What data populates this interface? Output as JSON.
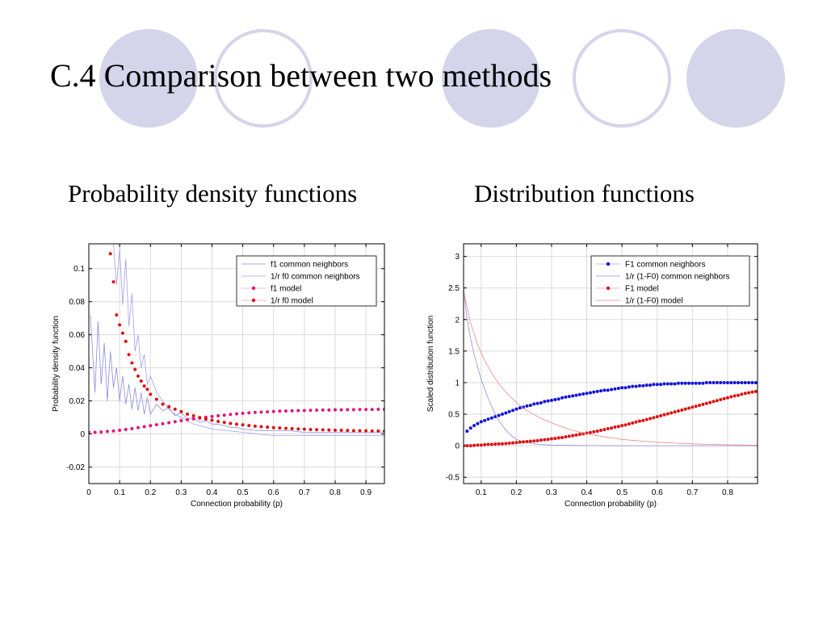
{
  "slide": {
    "title": "C.4 Comparison between two methods",
    "subtitle_left": "Probability density functions",
    "subtitle_right": "Distribution functions",
    "decor_fill": "#d4d4ea",
    "decor_stroke": "#d4d4ea"
  },
  "chart_data": [
    {
      "type": "line",
      "xlabel": "Connection probability (p)",
      "ylabel": "Probability density function",
      "xlim": [
        0,
        0.96
      ],
      "ylim": [
        -0.03,
        0.115
      ],
      "xticks": [
        "0",
        "0.1",
        "0.2",
        "0.3",
        "0.4",
        "0.5",
        "0.6",
        "0.7",
        "0.8",
        "0.9"
      ],
      "yticks": [
        "-0.02",
        "0",
        "0.02",
        "0.04",
        "0.06",
        "0.08",
        "0.1"
      ],
      "grid": true,
      "legend_position": "top-right",
      "series": [
        {
          "name": "f1  common neighbors",
          "color": "#8c8ce0",
          "style": "line",
          "x": [
            0.005,
            0.02,
            0.03,
            0.04,
            0.05,
            0.06,
            0.07,
            0.08,
            0.09,
            0.1,
            0.11,
            0.12,
            0.13,
            0.14,
            0.15,
            0.16,
            0.17,
            0.18,
            0.19,
            0.2,
            0.22,
            0.24,
            0.26,
            0.28,
            0.3,
            0.32,
            0.34,
            0.36,
            0.38,
            0.4,
            0.42,
            0.44,
            0.46,
            0.48,
            0.5,
            0.55,
            0.6,
            0.65,
            0.7,
            0.75,
            0.8,
            0.85,
            0.9,
            0.96
          ],
          "y": [
            0.072,
            0.025,
            0.068,
            0.03,
            0.055,
            0.02,
            0.05,
            0.028,
            0.04,
            0.02,
            0.035,
            0.018,
            0.03,
            0.015,
            0.028,
            0.014,
            0.025,
            0.012,
            0.022,
            0.012,
            0.018,
            0.014,
            0.016,
            0.011,
            0.013,
            0.009,
            0.01,
            0.007,
            0.008,
            0.006,
            0.006,
            0.005,
            0.004,
            0.004,
            0.003,
            0.002,
            0.002,
            0.002,
            0.001,
            0.001,
            0.001,
            0.001,
            0.001,
            0.001
          ]
        },
        {
          "name": "1/r f0  common neighbors",
          "color": "#a0a0e8",
          "style": "line",
          "x": [
            0.08,
            0.09,
            0.1,
            0.11,
            0.12,
            0.13,
            0.14,
            0.15,
            0.16,
            0.17,
            0.18,
            0.19,
            0.2,
            0.22,
            0.24,
            0.26,
            0.28,
            0.3,
            0.32,
            0.34,
            0.36,
            0.38,
            0.4,
            0.45,
            0.5,
            0.55,
            0.6,
            0.7,
            0.8,
            0.9,
            0.96
          ],
          "y": [
            0.115,
            0.09,
            0.112,
            0.078,
            0.106,
            0.065,
            0.085,
            0.05,
            0.06,
            0.04,
            0.048,
            0.03,
            0.035,
            0.025,
            0.02,
            0.015,
            0.012,
            0.01,
            0.008,
            0.006,
            0.005,
            0.004,
            0.003,
            0.002,
            0.001,
            0.0,
            -0.001,
            -0.001,
            -0.001,
            -0.001,
            -0.001
          ]
        },
        {
          "name": "f1  model",
          "color": "#e0157a",
          "style": "dots",
          "x": [
            0.0,
            0.02,
            0.04,
            0.06,
            0.08,
            0.1,
            0.12,
            0.14,
            0.16,
            0.18,
            0.2,
            0.22,
            0.24,
            0.26,
            0.28,
            0.3,
            0.32,
            0.34,
            0.36,
            0.38,
            0.4,
            0.42,
            0.44,
            0.46,
            0.48,
            0.5,
            0.52,
            0.54,
            0.56,
            0.58,
            0.6,
            0.62,
            0.64,
            0.66,
            0.68,
            0.7,
            0.72,
            0.74,
            0.76,
            0.78,
            0.8,
            0.82,
            0.84,
            0.86,
            0.88,
            0.9,
            0.92,
            0.94,
            0.96
          ],
          "y": [
            0.001,
            0.001,
            0.0012,
            0.0015,
            0.0018,
            0.0022,
            0.0027,
            0.0032,
            0.0038,
            0.0044,
            0.005,
            0.0056,
            0.0062,
            0.0068,
            0.0074,
            0.008,
            0.0086,
            0.0091,
            0.0096,
            0.0101,
            0.0106,
            0.011,
            0.0114,
            0.0118,
            0.0122,
            0.0125,
            0.0128,
            0.013,
            0.0132,
            0.0134,
            0.0136,
            0.0138,
            0.0139,
            0.014,
            0.0141,
            0.0142,
            0.0143,
            0.0144,
            0.0145,
            0.0145,
            0.0146,
            0.0146,
            0.0147,
            0.0147,
            0.0148,
            0.0148,
            0.0148,
            0.0149,
            0.0149
          ]
        },
        {
          "name": "1/r f0  model",
          "color": "#dd1111",
          "style": "dots",
          "x": [
            0.07,
            0.08,
            0.09,
            0.1,
            0.11,
            0.12,
            0.13,
            0.14,
            0.15,
            0.16,
            0.17,
            0.18,
            0.19,
            0.2,
            0.22,
            0.24,
            0.26,
            0.28,
            0.3,
            0.32,
            0.34,
            0.36,
            0.38,
            0.4,
            0.42,
            0.44,
            0.46,
            0.48,
            0.5,
            0.52,
            0.54,
            0.56,
            0.58,
            0.6,
            0.62,
            0.64,
            0.66,
            0.68,
            0.7,
            0.72,
            0.74,
            0.76,
            0.78,
            0.8,
            0.82,
            0.84,
            0.86,
            0.88,
            0.9,
            0.92,
            0.94,
            0.96
          ],
          "y": [
            0.109,
            0.092,
            0.072,
            0.066,
            0.061,
            0.056,
            0.048,
            0.043,
            0.039,
            0.035,
            0.032,
            0.029,
            0.027,
            0.024,
            0.021,
            0.018,
            0.0165,
            0.015,
            0.0135,
            0.012,
            0.011,
            0.01,
            0.009,
            0.0083,
            0.0076,
            0.007,
            0.0064,
            0.0059,
            0.0055,
            0.0051,
            0.0047,
            0.0044,
            0.0041,
            0.0038,
            0.0036,
            0.0034,
            0.0032,
            0.003,
            0.0029,
            0.0027,
            0.0026,
            0.0025,
            0.0024,
            0.0023,
            0.0022,
            0.0021,
            0.002,
            0.002,
            0.0019,
            0.0018,
            0.0018,
            0.0017
          ]
        }
      ]
    },
    {
      "type": "line",
      "xlabel": "Connection probability (p)",
      "ylabel": "Scaled distribution function",
      "xlim": [
        0.05,
        0.885
      ],
      "ylim": [
        -0.6,
        3.2
      ],
      "xticks": [
        "0.1",
        "0.2",
        "0.3",
        "0.4",
        "0.5",
        "0.6",
        "0.7",
        "0.8"
      ],
      "yticks": [
        "-0.5",
        "0",
        "0.5",
        "1",
        "1.5",
        "2",
        "2.5",
        "3"
      ],
      "grid": true,
      "legend_position": "top-right",
      "series": [
        {
          "name": "F1 common neighbors",
          "color": "#1010d8",
          "style": "dots",
          "x": [
            0.06,
            0.07,
            0.08,
            0.09,
            0.1,
            0.11,
            0.12,
            0.13,
            0.14,
            0.15,
            0.16,
            0.17,
            0.18,
            0.19,
            0.2,
            0.21,
            0.22,
            0.23,
            0.24,
            0.25,
            0.26,
            0.27,
            0.28,
            0.29,
            0.3,
            0.31,
            0.32,
            0.33,
            0.34,
            0.35,
            0.36,
            0.37,
            0.38,
            0.39,
            0.4,
            0.41,
            0.42,
            0.43,
            0.44,
            0.45,
            0.46,
            0.47,
            0.48,
            0.49,
            0.5,
            0.51,
            0.52,
            0.53,
            0.54,
            0.55,
            0.56,
            0.57,
            0.58,
            0.59,
            0.6,
            0.61,
            0.62,
            0.63,
            0.64,
            0.65,
            0.66,
            0.67,
            0.68,
            0.69,
            0.7,
            0.71,
            0.72,
            0.73,
            0.74,
            0.75,
            0.76,
            0.77,
            0.78,
            0.79,
            0.8,
            0.81,
            0.82,
            0.83,
            0.84,
            0.85,
            0.86,
            0.87,
            0.88
          ],
          "y": [
            0.23,
            0.28,
            0.32,
            0.35,
            0.38,
            0.4,
            0.42,
            0.44,
            0.46,
            0.48,
            0.5,
            0.52,
            0.54,
            0.56,
            0.58,
            0.6,
            0.61,
            0.63,
            0.64,
            0.66,
            0.67,
            0.68,
            0.7,
            0.71,
            0.72,
            0.73,
            0.74,
            0.76,
            0.77,
            0.78,
            0.79,
            0.8,
            0.81,
            0.82,
            0.83,
            0.84,
            0.85,
            0.86,
            0.87,
            0.88,
            0.88,
            0.89,
            0.9,
            0.91,
            0.92,
            0.92,
            0.93,
            0.94,
            0.94,
            0.95,
            0.95,
            0.96,
            0.96,
            0.97,
            0.97,
            0.97,
            0.98,
            0.98,
            0.98,
            0.98,
            0.99,
            0.99,
            0.99,
            0.99,
            0.99,
            0.99,
            0.99,
            0.99,
            1.0,
            1.0,
            1.0,
            1.0,
            1.0,
            1.0,
            1.0,
            1.0,
            1.0,
            1.0,
            1.0,
            1.0,
            1.0,
            1.0,
            1.0
          ]
        },
        {
          "name": "1/r (1-F0) common neighbors",
          "color": "#9090e0",
          "style": "line",
          "x": [
            0.05,
            0.06,
            0.07,
            0.08,
            0.09,
            0.1,
            0.11,
            0.12,
            0.13,
            0.14,
            0.15,
            0.16,
            0.17,
            0.18,
            0.19,
            0.2,
            0.22,
            0.24,
            0.26,
            0.28,
            0.3,
            0.35,
            0.4,
            0.5,
            0.6,
            0.7,
            0.8,
            0.885
          ],
          "y": [
            2.5,
            2.0,
            1.7,
            1.45,
            1.25,
            1.05,
            0.9,
            0.75,
            0.62,
            0.5,
            0.4,
            0.32,
            0.25,
            0.19,
            0.14,
            0.1,
            0.06,
            0.04,
            0.025,
            0.015,
            0.01,
            0.005,
            0.002,
            0.0,
            0.0,
            0.0,
            0.0,
            0.0
          ]
        },
        {
          "name": "F1 model",
          "color": "#dd1111",
          "style": "dots",
          "x": [
            0.05,
            0.06,
            0.07,
            0.08,
            0.09,
            0.1,
            0.11,
            0.12,
            0.13,
            0.14,
            0.15,
            0.16,
            0.17,
            0.18,
            0.19,
            0.2,
            0.21,
            0.22,
            0.23,
            0.24,
            0.25,
            0.26,
            0.27,
            0.28,
            0.29,
            0.3,
            0.31,
            0.32,
            0.33,
            0.34,
            0.35,
            0.36,
            0.37,
            0.38,
            0.39,
            0.4,
            0.41,
            0.42,
            0.43,
            0.44,
            0.45,
            0.46,
            0.47,
            0.48,
            0.49,
            0.5,
            0.51,
            0.52,
            0.53,
            0.54,
            0.55,
            0.56,
            0.57,
            0.58,
            0.59,
            0.6,
            0.61,
            0.62,
            0.63,
            0.64,
            0.65,
            0.66,
            0.67,
            0.68,
            0.69,
            0.7,
            0.71,
            0.72,
            0.73,
            0.74,
            0.75,
            0.76,
            0.77,
            0.78,
            0.79,
            0.8,
            0.81,
            0.82,
            0.83,
            0.84,
            0.85,
            0.86,
            0.87,
            0.88
          ],
          "y": [
            0.0,
            0.0,
            0.0,
            0.005,
            0.01,
            0.01,
            0.015,
            0.02,
            0.02,
            0.025,
            0.03,
            0.03,
            0.035,
            0.04,
            0.045,
            0.05,
            0.055,
            0.06,
            0.065,
            0.07,
            0.075,
            0.08,
            0.09,
            0.095,
            0.1,
            0.11,
            0.115,
            0.125,
            0.13,
            0.14,
            0.15,
            0.16,
            0.17,
            0.18,
            0.19,
            0.2,
            0.21,
            0.22,
            0.23,
            0.245,
            0.255,
            0.27,
            0.28,
            0.295,
            0.305,
            0.32,
            0.33,
            0.345,
            0.36,
            0.375,
            0.39,
            0.4,
            0.415,
            0.43,
            0.445,
            0.46,
            0.475,
            0.49,
            0.505,
            0.52,
            0.535,
            0.55,
            0.565,
            0.58,
            0.595,
            0.61,
            0.625,
            0.64,
            0.655,
            0.67,
            0.685,
            0.7,
            0.715,
            0.73,
            0.745,
            0.76,
            0.775,
            0.79,
            0.8,
            0.815,
            0.83,
            0.84,
            0.85,
            0.86
          ]
        },
        {
          "name": "1/r (1-F0) model",
          "color": "#ee8888",
          "style": "line",
          "x": [
            0.05,
            0.07,
            0.09,
            0.11,
            0.13,
            0.15,
            0.17,
            0.19,
            0.21,
            0.23,
            0.25,
            0.28,
            0.31,
            0.34,
            0.37,
            0.4,
            0.45,
            0.5,
            0.55,
            0.6,
            0.65,
            0.7,
            0.75,
            0.8,
            0.85,
            0.885
          ],
          "y": [
            2.45,
            1.95,
            1.6,
            1.35,
            1.15,
            0.98,
            0.85,
            0.74,
            0.64,
            0.56,
            0.49,
            0.41,
            0.34,
            0.28,
            0.23,
            0.19,
            0.14,
            0.1,
            0.075,
            0.055,
            0.04,
            0.03,
            0.02,
            0.015,
            0.01,
            0.008
          ]
        }
      ]
    }
  ]
}
